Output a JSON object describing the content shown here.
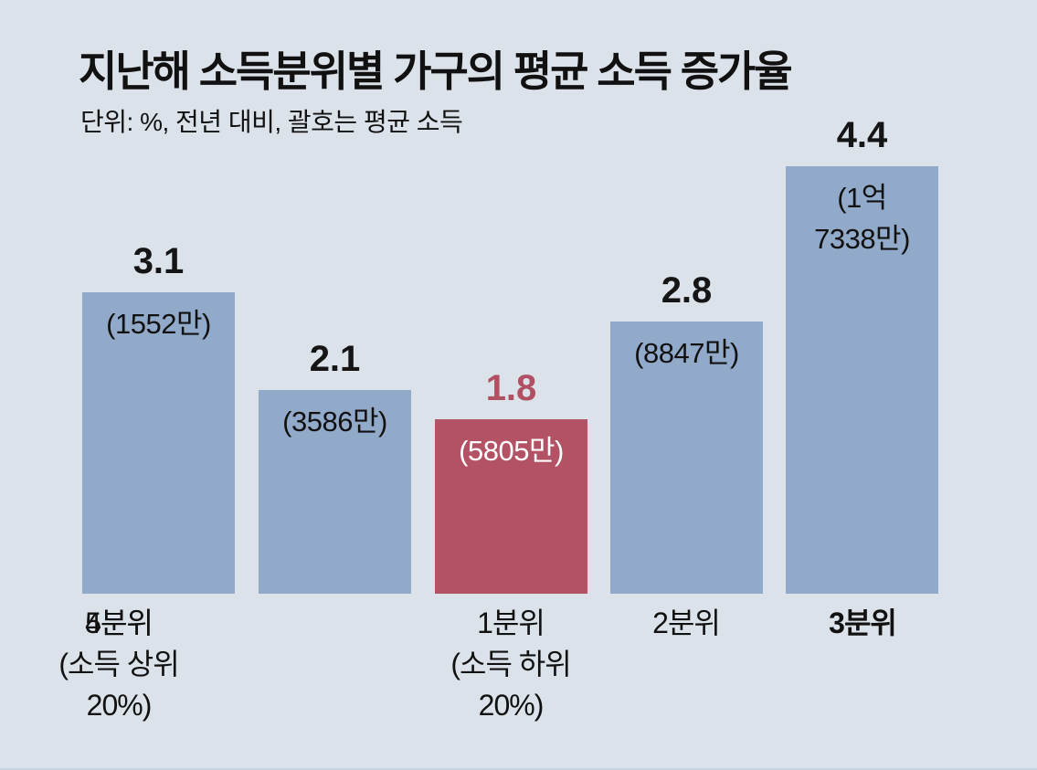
{
  "chart_data": {
    "type": "bar",
    "title": "지난해 소득분위별 가구의 평균 소득 증가율",
    "subtitle": "단위: %, 전년 대비, 괄호는 평균 소득",
    "xlabel": "",
    "ylabel": "",
    "ylim": [
      0,
      4.6
    ],
    "grid": false,
    "legend": "none",
    "categories": [
      "1분위",
      "2분위",
      "3분위",
      "4분위",
      "5분위"
    ],
    "values": [
      3.1,
      2.1,
      1.8,
      2.8,
      4.4
    ],
    "bars": [
      {
        "category": "1분위\n(소득 하위\n20%)",
        "value": 3.1,
        "value_label": "3.1",
        "income_label": "(1552만)",
        "highlighted": false
      },
      {
        "category": "2분위",
        "value": 2.1,
        "value_label": "2.1",
        "income_label": "(3586만)",
        "highlighted": false
      },
      {
        "category": "3분위",
        "value": 1.8,
        "value_label": "1.8",
        "income_label": "(5805만)",
        "highlighted": true
      },
      {
        "category": "4분위",
        "value": 2.8,
        "value_label": "2.8",
        "income_label": "(8847만)",
        "highlighted": false
      },
      {
        "category": "5분위\n(소득 상위\n20%)",
        "value": 4.4,
        "value_label": "4.4",
        "income_label": "(1억\n7338만)",
        "highlighted": false
      }
    ],
    "colors": {
      "background": "#dbe2e9",
      "bar_default": "#92aac9",
      "bar_highlight": "#b25264",
      "highlight_value_text": "#b14f63",
      "highlight_income_text": "#ffffff",
      "text": "#111111"
    }
  }
}
